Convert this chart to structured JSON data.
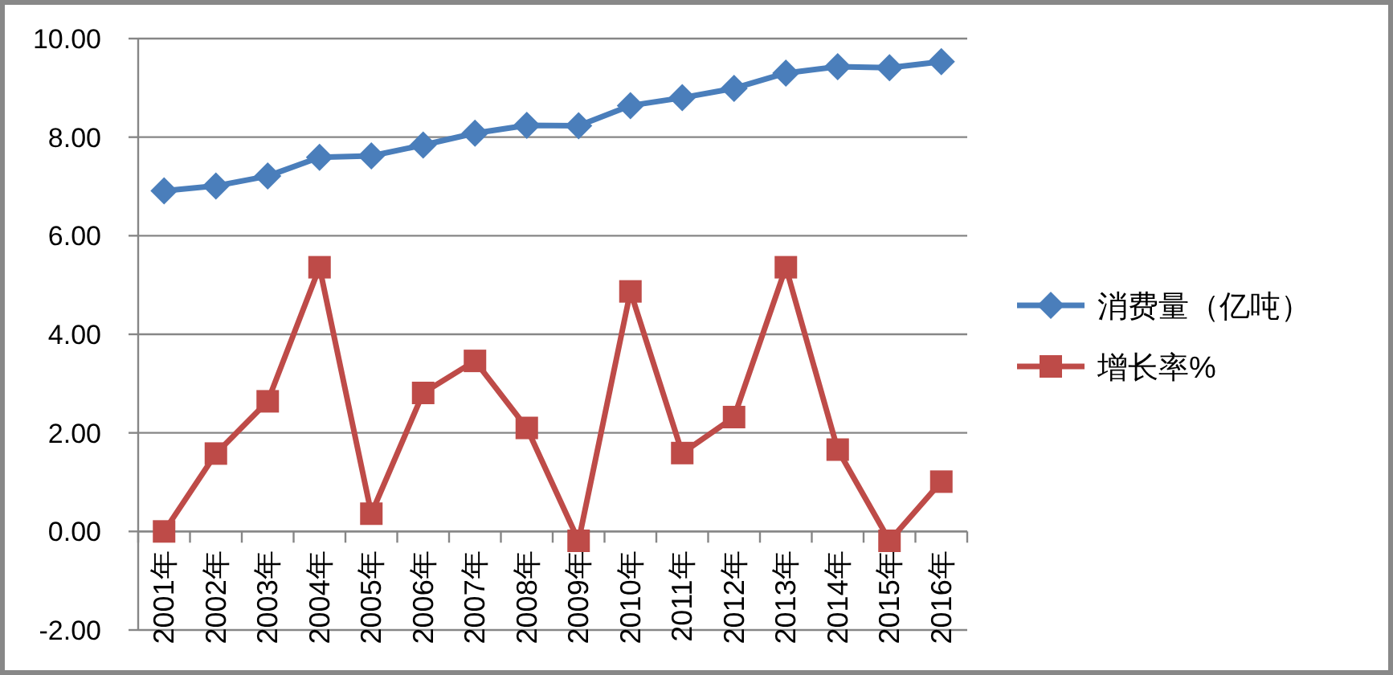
{
  "chart_data": {
    "type": "line",
    "categories": [
      "2001年",
      "2002年",
      "2003年",
      "2004年",
      "2005年",
      "2006年",
      "2007年",
      "2008年",
      "2009年",
      "2010年",
      "2011年",
      "2012年",
      "2013年",
      "2014年",
      "2015年",
      "2016年"
    ],
    "series": [
      {
        "name": "消费量（亿吨）",
        "color": "#4a7ebb",
        "marker": "diamond",
        "values": [
          6.91,
          7.01,
          7.21,
          7.59,
          7.62,
          7.84,
          8.08,
          8.24,
          8.23,
          8.64,
          8.8,
          8.99,
          9.3,
          9.43,
          9.41,
          9.53
        ]
      },
      {
        "name": "增长率%",
        "color": "#be4b48",
        "marker": "square",
        "values": [
          0,
          1.58,
          2.64,
          5.36,
          0.36,
          2.81,
          3.46,
          2.1,
          -0.19,
          4.87,
          1.59,
          2.32,
          5.36,
          1.66,
          -0.19,
          1.01
        ]
      }
    ],
    "ylim": [
      -2,
      10
    ],
    "yticks": [
      {
        "value": -2,
        "label": "-2.00"
      },
      {
        "value": 0,
        "label": "0.00"
      },
      {
        "value": 2,
        "label": "2.00"
      },
      {
        "value": 4,
        "label": "4.00"
      },
      {
        "value": 6,
        "label": "6.00"
      },
      {
        "value": 8,
        "label": "8.00"
      },
      {
        "value": 10,
        "label": "10.00"
      }
    ],
    "grid": "y",
    "legend": "right",
    "line_style": "solid"
  }
}
